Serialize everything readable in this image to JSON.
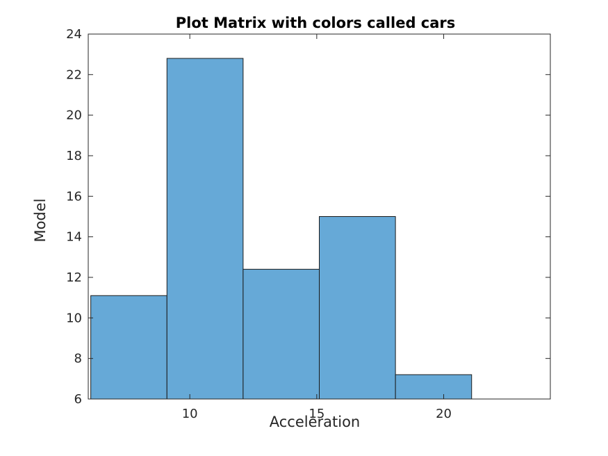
{
  "chart_data": {
    "type": "bar",
    "title": "Plot Matrix with colors called cars",
    "xlabel": "Acceleration",
    "ylabel": "Model",
    "xlim": [
      6,
      24.2
    ],
    "ylim": [
      6,
      24
    ],
    "xticks": [
      10,
      15,
      20
    ],
    "yticks": [
      6,
      8,
      10,
      12,
      14,
      16,
      18,
      20,
      22,
      24
    ],
    "grid": false,
    "bar_color": "#66a9d7",
    "edge_color": "#1a1a1a",
    "bins": [
      {
        "x0": 6.1,
        "x1": 9.1,
        "value": 11.1
      },
      {
        "x0": 9.1,
        "x1": 12.1,
        "value": 22.8
      },
      {
        "x0": 12.1,
        "x1": 15.1,
        "value": 12.4
      },
      {
        "x0": 15.1,
        "x1": 18.1,
        "value": 15.0
      },
      {
        "x0": 18.1,
        "x1": 21.1,
        "value": 7.2
      }
    ]
  }
}
